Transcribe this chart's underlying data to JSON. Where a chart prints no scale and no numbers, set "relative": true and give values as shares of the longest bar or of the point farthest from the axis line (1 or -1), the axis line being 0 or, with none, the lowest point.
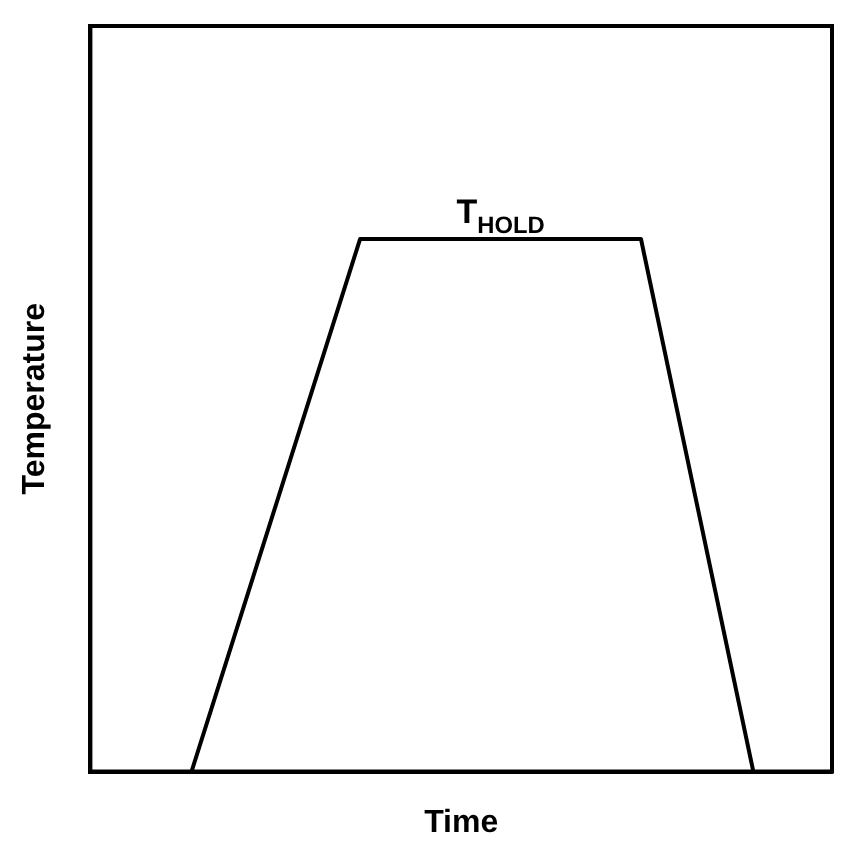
{
  "chart_data": {
    "type": "line",
    "relative": true,
    "xlabel": "Time",
    "ylabel": "Temperature",
    "annotations": [
      "T$_{HOLD}$"
    ],
    "color": "#000000",
    "marker": "none",
    "grid": false,
    "legend": false,
    "tick_labels": false,
    "categories": [
      null,
      null,
      null,
      null,
      null,
      null,
      null,
      null,
      null,
      null,
      null,
      null,
      null,
      null,
      null,
      null,
      null,
      null,
      null,
      null,
      null,
      null,
      null,
      null,
      null,
      null,
      null,
      null,
      null,
      null,
      null,
      null,
      null,
      null,
      null,
      null,
      null,
      null,
      null,
      null,
      null,
      null,
      null,
      null,
      null,
      null,
      null,
      null,
      null,
      null,
      null,
      null,
      null,
      null,
      null,
      null,
      null,
      null,
      null,
      null,
      null,
      null,
      null,
      null,
      null,
      null,
      null
    ],
    "values": [
      null,
      null,
      null,
      null,
      null,
      null,
      null,
      null,
      null,
      0,
      null,
      null,
      null,
      null,
      null,
      null,
      null,
      null,
      null,
      null,
      null,
      null,
      null,
      null,
      1,
      null,
      null,
      null,
      null,
      null,
      null,
      null,
      null,
      null,
      null,
      null,
      null,
      null,
      null,
      null,
      null,
      null,
      null,
      null,
      null,
      null,
      null,
      null,
      null,
      1,
      null,
      null,
      null,
      null,
      null,
      null,
      null,
      null,
      null,
      0,
      null,
      null,
      null,
      null,
      null,
      null,
      null
    ]
  }
}
